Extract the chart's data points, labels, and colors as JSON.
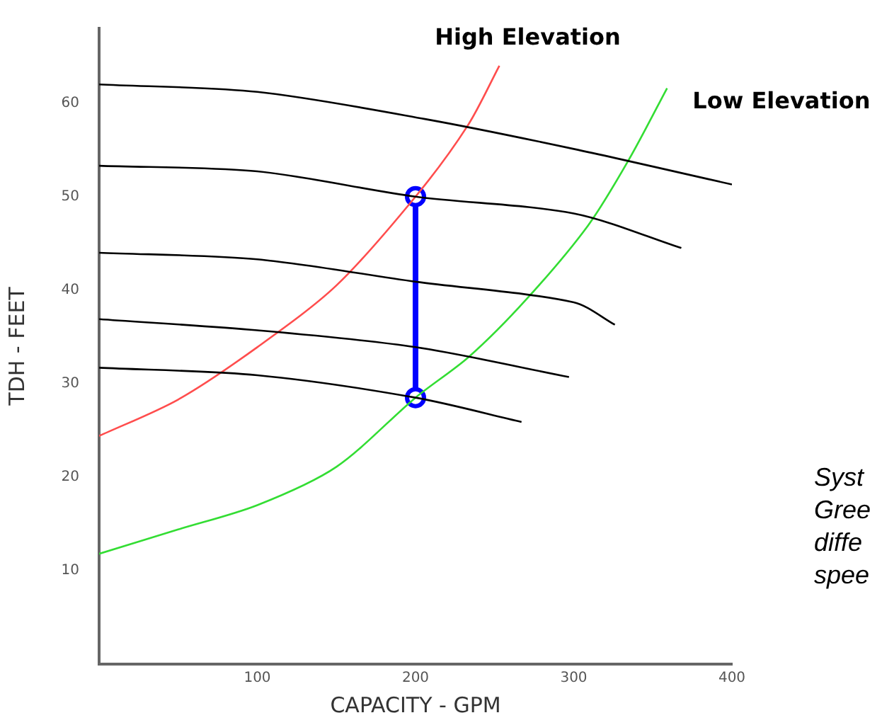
{
  "chart_data": {
    "type": "line",
    "xlabel": "CAPACITY - GPM",
    "ylabel": "TDH - FEET",
    "xlim": [
      0,
      400
    ],
    "xticks": [
      100,
      200,
      300,
      400
    ],
    "ylim": [
      0,
      68
    ],
    "yticks": [
      10,
      20,
      30,
      40,
      50,
      60
    ],
    "grid": false,
    "legend": false,
    "marker": "none",
    "series": [
      {
        "color": "#000000",
        "x": [
          0,
          100,
          206,
          300,
          400
        ],
        "values": [
          62,
          61.2,
          58.3,
          55.1,
          51.3
        ]
      },
      {
        "color": "#000000",
        "x": [
          0,
          100,
          200,
          300,
          368
        ],
        "values": [
          53.3,
          52.7,
          50,
          48.2,
          44.5
        ]
      },
      {
        "color": "#000000",
        "x": [
          0,
          100,
          200,
          300,
          326
        ],
        "values": [
          44,
          43.3,
          40.9,
          38.7,
          36.3
        ]
      },
      {
        "color": "#000000",
        "x": [
          0,
          100,
          200,
          297
        ],
        "values": [
          36.9,
          35.7,
          33.9,
          30.7
        ]
      },
      {
        "color": "#000000",
        "x": [
          0,
          100,
          200,
          267
        ],
        "values": [
          31.7,
          30.9,
          28.5,
          25.9
        ]
      },
      {
        "name": "High Elevation",
        "color": "#ff4d4d",
        "x": [
          0,
          50,
          100,
          150,
          200,
          233,
          253
        ],
        "values": [
          24.4,
          28.3,
          33.9,
          40.5,
          50,
          57.6,
          64
        ]
      },
      {
        "name": "Low Elevation",
        "color": "#33dd33",
        "x": [
          0,
          50,
          100,
          150,
          200,
          234,
          270,
          309,
          335,
          359
        ],
        "values": [
          11.8,
          14.4,
          17,
          21.1,
          28.5,
          32.9,
          39,
          46.9,
          54,
          61.6
        ]
      },
      {
        "color": "#0000ff",
        "x": [
          200,
          200
        ],
        "values": [
          28.5,
          50
        ],
        "marker": "circle"
      }
    ],
    "annotations": [
      "Syst",
      "Gree",
      "diffe",
      "spee"
    ]
  }
}
